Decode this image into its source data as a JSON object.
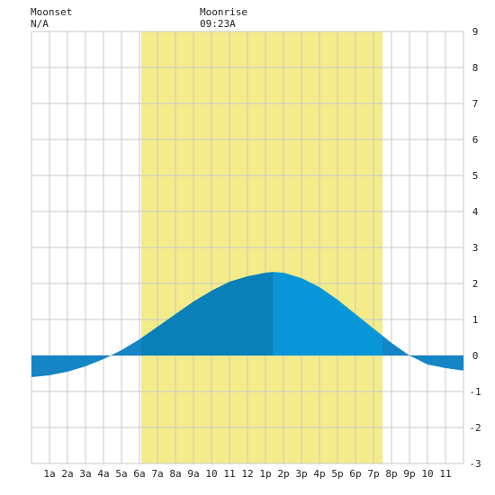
{
  "header": {
    "moonset_label": "Moonset",
    "moonset_value": "N/A",
    "moonrise_label": "Moonrise",
    "moonrise_value": "09:23A"
  },
  "colors": {
    "background": "#ffffff",
    "daylight": "#f4ec8a",
    "grid": "#c8c8c8",
    "tide_day_rising": "#0a80b8",
    "tide_day_falling": "#0896d8",
    "tide_night": "#1585c5",
    "text": "#222222"
  },
  "chart_data": {
    "type": "area",
    "title": "",
    "xlabel": "",
    "ylabel": "",
    "x_range": [
      0,
      24
    ],
    "ylim": [
      -3,
      9
    ],
    "grid": true,
    "x_ticks": [
      {
        "hour": 1,
        "label": "1a"
      },
      {
        "hour": 2,
        "label": "2a"
      },
      {
        "hour": 3,
        "label": "3a"
      },
      {
        "hour": 4,
        "label": "4a"
      },
      {
        "hour": 5,
        "label": "5a"
      },
      {
        "hour": 6,
        "label": "6a"
      },
      {
        "hour": 7,
        "label": "7a"
      },
      {
        "hour": 8,
        "label": "8a"
      },
      {
        "hour": 9,
        "label": "9a"
      },
      {
        "hour": 10,
        "label": "10"
      },
      {
        "hour": 11,
        "label": "11"
      },
      {
        "hour": 12,
        "label": "12"
      },
      {
        "hour": 13,
        "label": "1p"
      },
      {
        "hour": 14,
        "label": "2p"
      },
      {
        "hour": 15,
        "label": "3p"
      },
      {
        "hour": 16,
        "label": "4p"
      },
      {
        "hour": 17,
        "label": "5p"
      },
      {
        "hour": 18,
        "label": "6p"
      },
      {
        "hour": 19,
        "label": "7p"
      },
      {
        "hour": 20,
        "label": "8p"
      },
      {
        "hour": 21,
        "label": "9p"
      },
      {
        "hour": 22,
        "label": "10"
      },
      {
        "hour": 23,
        "label": "11"
      }
    ],
    "y_ticks": [
      -3,
      -2,
      -1,
      0,
      1,
      2,
      3,
      4,
      5,
      6,
      7,
      8,
      9
    ],
    "daylight": {
      "start_hour": 6.1,
      "end_hour": 19.5
    },
    "series": [
      {
        "x": [
          0,
          1,
          2,
          3,
          4,
          5,
          6,
          7,
          8,
          9,
          10,
          11,
          12,
          13,
          13.4,
          14,
          15,
          16,
          17,
          18,
          19,
          20,
          21,
          22,
          23,
          24
        ],
        "values": [
          -0.6,
          -0.55,
          -0.45,
          -0.3,
          -0.1,
          0.15,
          0.45,
          0.8,
          1.15,
          1.5,
          1.8,
          2.05,
          2.2,
          2.3,
          2.32,
          2.3,
          2.15,
          1.9,
          1.55,
          1.15,
          0.75,
          0.35,
          0.0,
          -0.25,
          -0.35,
          -0.42
        ]
      }
    ],
    "peak_hour": 13.4
  }
}
